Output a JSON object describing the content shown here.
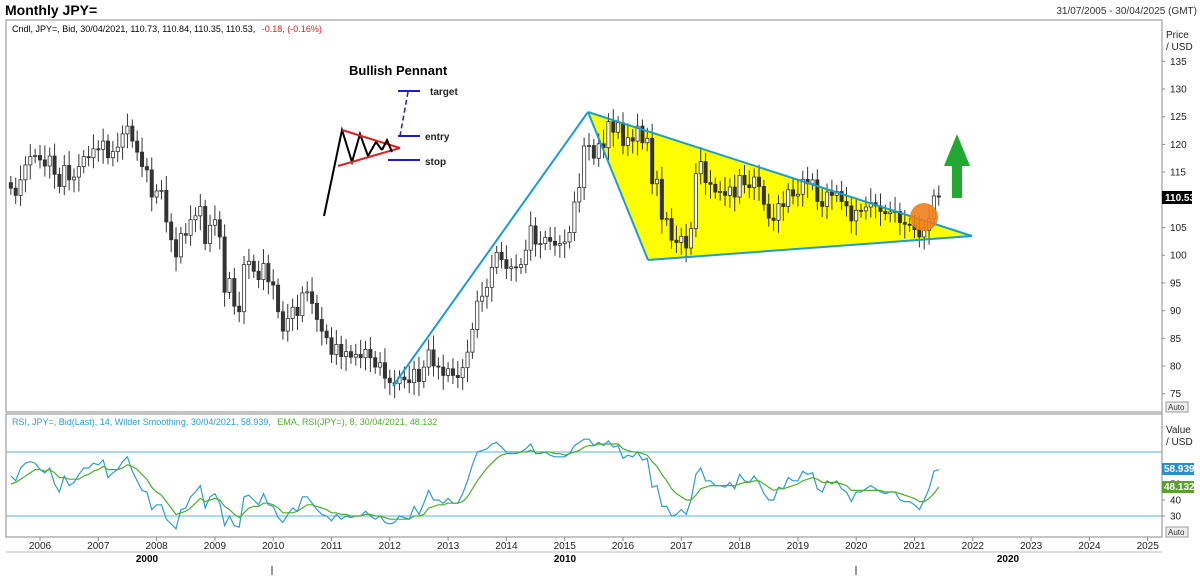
{
  "header": {
    "title": "Monthly JPY=",
    "date_range": "31/07/2005 - 30/04/2025 (GMT)"
  },
  "price_legend": {
    "prefix": "Cndl, JPY=, Bid, 30/04/2021, 110.73, 110.84, 110.35, 110.53,",
    "change": "-0.18, (-0.16%)"
  },
  "price_axis": {
    "title": "Price",
    "unit": "/ USD",
    "ticks": [
      "135",
      "130",
      "125",
      "120",
      "115",
      "110",
      "105",
      "100",
      "95",
      "90",
      "85",
      "80",
      "75"
    ],
    "last_value": "110.53",
    "auto": "Auto"
  },
  "rsi_legend": {
    "rsi_text": "RSI, JPY=, Bid(Last),  14, Wilder Smoothing, 30/04/2021, 58.939,",
    "ema_text": "EMA, RSI(JPY=),  8, 30/04/2021, 48.132"
  },
  "rsi_axis": {
    "title": "Value",
    "unit": "/ USD",
    "ticks": [
      "60",
      "50",
      "40",
      "30"
    ],
    "rsi_value": "58.939",
    "ema_value": "48.132",
    "auto": "Auto"
  },
  "time_axis": {
    "years": [
      "2006",
      "2007",
      "2008",
      "2009",
      "2010",
      "2011",
      "2012",
      "2013",
      "2014",
      "2015",
      "2016",
      "2017",
      "2018",
      "2019",
      "2020",
      "2021",
      "2022",
      "2023",
      "2024",
      "2025"
    ],
    "decades": [
      "2000",
      "2010",
      "2020"
    ]
  },
  "annotation": {
    "title": "Bullish Pennant",
    "target": "target",
    "entry": "entry",
    "stop": "stop"
  },
  "colors": {
    "candle": "#333333",
    "rsi_line": "#2a9bd6",
    "ema_line": "#4caf2a",
    "pennant_fill": "#ffff00",
    "trend_line": "#1b9bd8",
    "arrow": "#22a832",
    "breakout_circle": "#f07d19",
    "level_line": "#58b4d6",
    "change_text": "#e02020",
    "rsi_badge": "#2a8fc8",
    "ema_badge": "#5aa02c"
  },
  "chart_data": {
    "type": "candlestick",
    "title": "Monthly JPY=",
    "ylabel": "Price / USD",
    "ylim": [
      72,
      137
    ],
    "x_start": "2005-07",
    "last_close": 110.53,
    "monthly_closes": [
      112.1,
      110.8,
      113.6,
      116.3,
      117.8,
      118.0,
      117.2,
      116.1,
      117.9,
      114.6,
      112.4,
      116.2,
      113.6,
      114.1,
      116.0,
      117.8,
      117.6,
      119.2,
      119.1,
      120.6,
      117.6,
      118.7,
      119.5,
      121.9,
      123.3,
      120.6,
      118.6,
      116.0,
      115.4,
      110.5,
      111.6,
      111.7,
      106.0,
      102.8,
      99.7,
      103.9,
      103.6,
      106.4,
      107.1,
      108.8,
      102.1,
      105.4,
      106.4,
      103.3,
      93.3,
      95.8,
      90.8,
      89.8,
      98.3,
      98.9,
      97.1,
      95.6,
      98.5,
      95.2,
      94.6,
      89.8,
      86.3,
      88.6,
      90.6,
      89.1,
      93.2,
      93.4,
      91.3,
      88.4,
      86.3,
      85.1,
      82.1,
      83.9,
      81.7,
      82.6,
      81.6,
      82.1,
      81.5,
      83.0,
      81.5,
      79.8,
      80.6,
      77.8,
      77.0,
      76.8,
      78.0,
      77.5,
      77.0,
      79.4,
      77.2,
      79.8,
      82.9,
      80.0,
      79.8,
      78.3,
      79.5,
      78.3,
      77.9,
      79.7,
      82.5,
      86.6,
      91.7,
      92.6,
      94.2,
      97.8,
      100.5,
      99.2,
      97.6,
      97.9,
      97.8,
      98.3,
      100.9,
      105.3,
      102.0,
      102.1,
      103.2,
      102.5,
      101.8,
      102.1,
      102.4,
      104.1,
      109.6,
      112.2,
      119.7,
      119.8,
      117.5,
      120.1,
      119.4,
      124.1,
      122.2,
      123.9,
      119.8,
      121.2,
      120.6,
      123.3,
      120.3,
      121.1,
      112.9,
      113.7,
      106.5,
      106.6,
      102.7,
      102.3,
      103.4,
      101.3,
      104.8,
      114.7,
      116.9,
      113.1,
      112.8,
      111.4,
      111.5,
      110.8,
      112.3,
      110.5,
      114.4,
      112.7,
      112.2,
      114.1,
      112.4,
      109.2,
      106.7,
      106.3,
      109.3,
      108.8,
      111.8,
      110.7,
      111.0,
      113.7,
      112.9,
      113.6,
      109.7,
      108.8,
      111.4,
      110.8,
      111.5,
      109.7,
      108.9,
      106.2,
      108.1,
      108.0,
      108.7,
      109.5,
      108.9,
      107.9,
      107.5,
      107.8,
      107.9,
      105.9,
      105.6,
      105.4,
      104.6,
      103.3,
      104.5,
      106.6,
      110.7,
      110.5
    ],
    "rsi": {
      "name": "RSI",
      "period": 14,
      "last": 58.939
    },
    "ema": {
      "name": "EMA",
      "period": 8,
      "last": 48.132
    },
    "rsi_ylim": [
      22,
      80
    ],
    "rsi_levels": [
      30,
      70
    ],
    "rsi_values": [
      55,
      52,
      60,
      63,
      64,
      63,
      59,
      57,
      60,
      50,
      45,
      55,
      49,
      51,
      56,
      60,
      60,
      63,
      62,
      65,
      54,
      57,
      59,
      64,
      67,
      58,
      52,
      46,
      45,
      34,
      37,
      37,
      28,
      25,
      22,
      34,
      35,
      42,
      45,
      49,
      35,
      42,
      44,
      38,
      24,
      30,
      24,
      23,
      42,
      43,
      40,
      37,
      44,
      37,
      36,
      29,
      26,
      31,
      35,
      33,
      42,
      42,
      38,
      34,
      31,
      30,
      27,
      31,
      28,
      30,
      29,
      30,
      30,
      33,
      30,
      28,
      30,
      26,
      25,
      26,
      30,
      29,
      28,
      36,
      31,
      38,
      46,
      40,
      40,
      38,
      41,
      38,
      38,
      44,
      52,
      62,
      70,
      71,
      72,
      75,
      76,
      73,
      70,
      70,
      70,
      70,
      72,
      75,
      69,
      69,
      70,
      68,
      67,
      67,
      67,
      69,
      74,
      76,
      78,
      78,
      74,
      76,
      74,
      77,
      73,
      74,
      66,
      68,
      67,
      70,
      65,
      66,
      48,
      49,
      36,
      36,
      30,
      31,
      34,
      31,
      40,
      56,
      60,
      52,
      52,
      49,
      49,
      48,
      51,
      47,
      56,
      52,
      51,
      55,
      51,
      44,
      40,
      40,
      48,
      47,
      54,
      52,
      52,
      58,
      56,
      57,
      47,
      45,
      52,
      50,
      52,
      47,
      45,
      39,
      45,
      45,
      47,
      49,
      47,
      45,
      44,
      45,
      45,
      40,
      39,
      39,
      37,
      34,
      40,
      47,
      58,
      58.939
    ],
    "ema_values": [
      50,
      51,
      53,
      55,
      57,
      59,
      59,
      58,
      59,
      57,
      54,
      54,
      53,
      53,
      53,
      55,
      56,
      58,
      59,
      61,
      59,
      59,
      59,
      60,
      62,
      61,
      59,
      56,
      53,
      48,
      45,
      43,
      39,
      35,
      31,
      32,
      33,
      35,
      38,
      41,
      39,
      40,
      41,
      40,
      36,
      34,
      31,
      29,
      32,
      35,
      36,
      36,
      38,
      38,
      37,
      35,
      32,
      32,
      32,
      33,
      35,
      37,
      37,
      36,
      35,
      34,
      32,
      32,
      31,
      31,
      30,
      30,
      30,
      31,
      31,
      30,
      30,
      29,
      28,
      28,
      28,
      28,
      28,
      30,
      30,
      31,
      35,
      36,
      37,
      37,
      38,
      38,
      38,
      39,
      42,
      47,
      52,
      56,
      60,
      63,
      66,
      68,
      69,
      69,
      69,
      70,
      70,
      71,
      70,
      70,
      70,
      70,
      69,
      69,
      68,
      69,
      70,
      71,
      73,
      74,
      74,
      75,
      75,
      75,
      75,
      75,
      72,
      71,
      70,
      70,
      69,
      68,
      64,
      61,
      56,
      52,
      47,
      44,
      42,
      40,
      40,
      43,
      47,
      48,
      49,
      49,
      49,
      49,
      49,
      49,
      50,
      51,
      51,
      52,
      52,
      50,
      48,
      46,
      47,
      47,
      48,
      49,
      50,
      52,
      53,
      54,
      53,
      51,
      51,
      51,
      51,
      50,
      49,
      46,
      46,
      46,
      46,
      46,
      46,
      46,
      45,
      45,
      45,
      44,
      43,
      42,
      41,
      39,
      39,
      41,
      44,
      48.132
    ]
  }
}
